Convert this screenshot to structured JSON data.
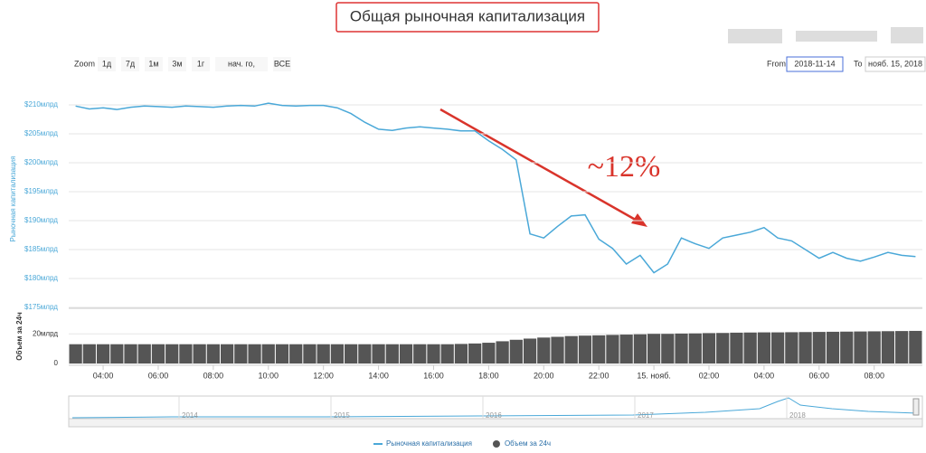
{
  "chart_data": {
    "type": "line",
    "title": "Общая рыночная капитализация",
    "annotation": "~12%",
    "zoom_label": "Zoom",
    "zoom_buttons": [
      "1д",
      "7д",
      "1м",
      "3м",
      "1г",
      "нач. го,",
      "ВСЕ"
    ],
    "from_label": "From",
    "from_value": "2018-11-14",
    "to_label": "To",
    "to_value": "нояб. 15, 2018",
    "ylabel": "Рыночная капитализация",
    "y2label": "Объем за 24ч",
    "navigator_years": [
      "2014",
      "2015",
      "2016",
      "2017",
      "2018"
    ],
    "categories": [
      null,
      null,
      "04:00",
      null,
      null,
      null,
      "06:00",
      null,
      null,
      null,
      "08:00",
      null,
      null,
      null,
      "10:00",
      null,
      null,
      null,
      "12:00",
      null,
      null,
      null,
      "14:00",
      null,
      null,
      null,
      "16:00",
      null,
      null,
      null,
      "18:00",
      null,
      null,
      null,
      "20:00",
      null,
      null,
      null,
      "22:00",
      null,
      null,
      null,
      "15. нояб.",
      null,
      null,
      null,
      "02:00",
      null,
      null,
      null,
      "04:00",
      null,
      null,
      null,
      "06:00",
      null,
      null,
      null,
      "08:00",
      null,
      null,
      null
    ],
    "series": [
      {
        "name": "Рыночная капитализация",
        "color": "#4aa8d8",
        "values": [
          209.8,
          209.3,
          209.5,
          209.2,
          209.6,
          209.8,
          209.7,
          209.6,
          209.8,
          209.7,
          209.6,
          209.8,
          209.9,
          209.8,
          210.3,
          209.9,
          209.8,
          209.9,
          209.9,
          209.5,
          208.5,
          207.0,
          205.8,
          205.6,
          206.0,
          206.2,
          206.0,
          205.8,
          205.5,
          205.5,
          203.8,
          202.3,
          200.5,
          187.7,
          187.0,
          189.0,
          190.8,
          191.0,
          186.8,
          185.2,
          182.5,
          184.0,
          181.0,
          182.5,
          187.0,
          186.0,
          185.2,
          187.0,
          187.5,
          188.0,
          188.8,
          187.0,
          186.5,
          185.0,
          183.5,
          184.5,
          183.5,
          183.0,
          183.7,
          184.5,
          184.0,
          183.8
        ]
      },
      {
        "name": "Объем за 24ч",
        "color": "#555555",
        "axis": "y2",
        "values": [
          13,
          13,
          13,
          13,
          13,
          13,
          13,
          13,
          13,
          13,
          13,
          13,
          13,
          13,
          13,
          13,
          13,
          13,
          13,
          13,
          13,
          13,
          13,
          13,
          13,
          13,
          13,
          13,
          13.2,
          13.5,
          14,
          15,
          16,
          16.8,
          17.5,
          18,
          18.5,
          18.8,
          19,
          19.3,
          19.5,
          19.7,
          20,
          20,
          20.2,
          20.3,
          20.5,
          20.6,
          20.8,
          20.9,
          21,
          21,
          21.1,
          21.2,
          21.3,
          21.4,
          21.5,
          21.6,
          21.7,
          21.8,
          21.9,
          22
        ]
      }
    ],
    "ylim": [
      175,
      212.5
    ],
    "yticks": [
      {
        "value": 175,
        "label": "$175млрд"
      },
      {
        "value": 180,
        "label": "$180млрд"
      },
      {
        "value": 185,
        "label": "$185млрд"
      },
      {
        "value": 190,
        "label": "$190млрд"
      },
      {
        "value": 195,
        "label": "$195млрд"
      },
      {
        "value": 200,
        "label": "$200млрд"
      },
      {
        "value": 205,
        "label": "$205млрд"
      },
      {
        "value": 210,
        "label": "$210млрд"
      }
    ],
    "y2lim": [
      0,
      36
    ],
    "y2ticks": [
      0,
      {
        "value": 20,
        "label": "20млрд"
      }
    ],
    "grid": true
  }
}
